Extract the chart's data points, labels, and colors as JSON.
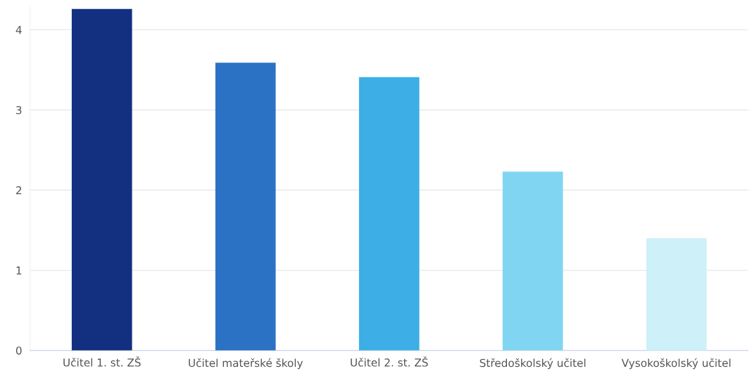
{
  "chart_data": {
    "type": "bar",
    "categories": [
      "Učitel 1. st. ZŠ",
      "Učitel mateřské školy",
      "Učitel 2. st. ZŠ",
      "Středoškolský učitel",
      "Vysokoškolský učitel"
    ],
    "values": [
      4.26,
      3.59,
      3.41,
      2.23,
      1.4
    ],
    "colors": [
      "#12307f",
      "#2b72c4",
      "#3daee6",
      "#80d6f2",
      "#cdf0f9"
    ],
    "ylim": [
      0,
      4.3
    ],
    "yticks": [
      0,
      1,
      2,
      3,
      4
    ],
    "grid": "y"
  }
}
